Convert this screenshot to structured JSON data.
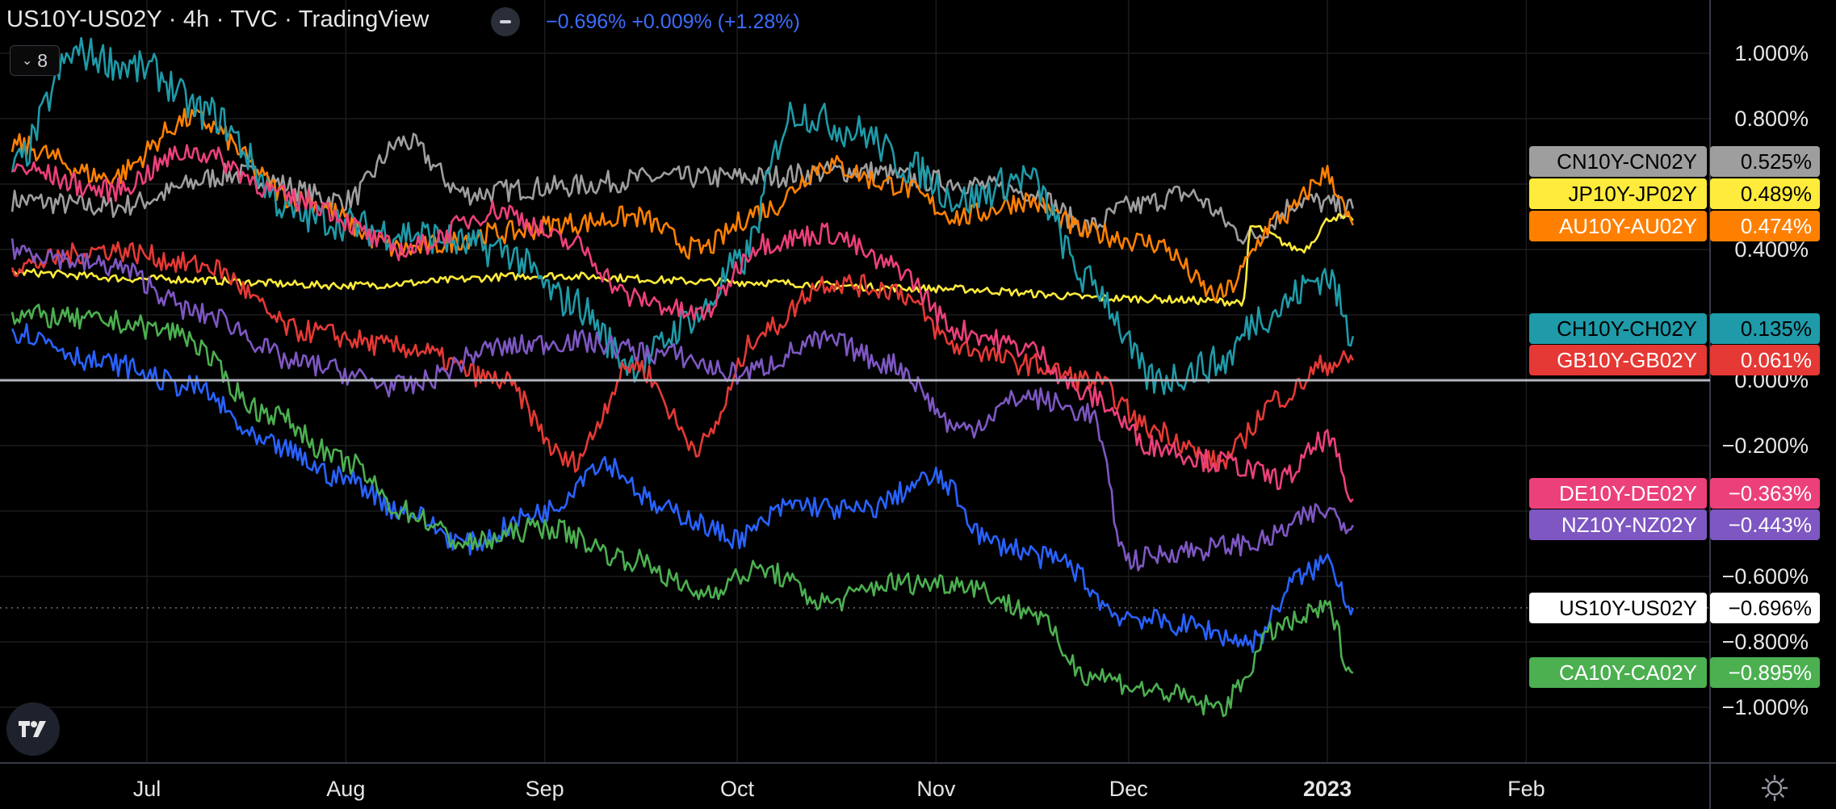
{
  "header": {
    "title": "US10Y-US02Y · 4h · TVC · TradingView",
    "values": "−0.696% +0.009% (+1.28%)",
    "indicator_count": "8"
  },
  "colors": {
    "background": "#000000",
    "grid": "#1c1c1c",
    "axis_text": "#e6e6e6",
    "zero_line": "#b2b5be"
  },
  "chart_data": {
    "type": "line",
    "interval": "4h",
    "x_start": "2022-06-10",
    "x_end": "2023-01-05",
    "x_axis_labels": [
      "Jul",
      "Aug",
      "Sep",
      "Oct",
      "Nov",
      "Dec",
      "2023",
      "Feb"
    ],
    "x_axis_dates": [
      "2022-07-01",
      "2022-08-01",
      "2022-09-01",
      "2022-10-01",
      "2022-11-01",
      "2022-12-01",
      "2023-01-01",
      "2023-02-01"
    ],
    "y_axis_labels": [
      "1.000%",
      "0.800%",
      "0.400%",
      "0.000%",
      "−0.200%",
      "−0.600%",
      "−0.800%",
      "−1.000%"
    ],
    "y_axis_values": [
      1.0,
      0.8,
      0.4,
      0.0,
      -0.2,
      -0.6,
      -0.8,
      -1.0
    ],
    "ylim": [
      -1.1,
      1.1
    ],
    "grid": true,
    "series": [
      {
        "name": "CN10Y-CN02Y",
        "color": "#9e9e9e",
        "last_label": "0.525%",
        "last": 0.525,
        "label_text_color": "#000000",
        "knots": [
          [
            "2022-06-10",
            0.55
          ],
          [
            "2022-06-25",
            0.53
          ],
          [
            "2022-07-15",
            0.63
          ],
          [
            "2022-08-01",
            0.55
          ],
          [
            "2022-08-10",
            0.73
          ],
          [
            "2022-08-20",
            0.57
          ],
          [
            "2022-09-01",
            0.59
          ],
          [
            "2022-09-20",
            0.62
          ],
          [
            "2022-10-01",
            0.62
          ],
          [
            "2022-10-20",
            0.64
          ],
          [
            "2022-11-01",
            0.61
          ],
          [
            "2022-11-15",
            0.58
          ],
          [
            "2022-11-25",
            0.47
          ],
          [
            "2022-12-01",
            0.53
          ],
          [
            "2022-12-10",
            0.57
          ],
          [
            "2022-12-20",
            0.44
          ],
          [
            "2022-12-28",
            0.55
          ],
          [
            "2023-01-05",
            0.525
          ]
        ]
      },
      {
        "name": "JP10Y-JP02Y",
        "color": "#ffeb3b",
        "last_label": "0.489%",
        "last": 0.489,
        "label_text_color": "#000000",
        "knots": [
          [
            "2022-06-10",
            0.33
          ],
          [
            "2022-07-01",
            0.31
          ],
          [
            "2022-08-01",
            0.29
          ],
          [
            "2022-09-01",
            0.32
          ],
          [
            "2022-10-01",
            0.3
          ],
          [
            "2022-11-01",
            0.28
          ],
          [
            "2022-12-01",
            0.25
          ],
          [
            "2022-12-19",
            0.24
          ],
          [
            "2022-12-20",
            0.47
          ],
          [
            "2022-12-28",
            0.4
          ],
          [
            "2023-01-02",
            0.5
          ],
          [
            "2023-01-05",
            0.489
          ]
        ]
      },
      {
        "name": "AU10Y-AU02Y",
        "color": "#ff8000",
        "last_label": "0.474%",
        "last": 0.474,
        "label_text_color": "#ffffff",
        "knots": [
          [
            "2022-06-10",
            0.72
          ],
          [
            "2022-06-25",
            0.62
          ],
          [
            "2022-07-08",
            0.8
          ],
          [
            "2022-07-25",
            0.55
          ],
          [
            "2022-08-10",
            0.4
          ],
          [
            "2022-08-25",
            0.45
          ],
          [
            "2022-09-05",
            0.48
          ],
          [
            "2022-09-15",
            0.5
          ],
          [
            "2022-09-25",
            0.4
          ],
          [
            "2022-10-05",
            0.52
          ],
          [
            "2022-10-15",
            0.66
          ],
          [
            "2022-10-25",
            0.6
          ],
          [
            "2022-11-05",
            0.5
          ],
          [
            "2022-11-15",
            0.55
          ],
          [
            "2022-11-25",
            0.45
          ],
          [
            "2022-12-05",
            0.42
          ],
          [
            "2022-12-15",
            0.26
          ],
          [
            "2022-12-25",
            0.5
          ],
          [
            "2023-01-01",
            0.63
          ],
          [
            "2023-01-05",
            0.474
          ]
        ]
      },
      {
        "name": "CH10Y-CH02Y",
        "color": "#1f9aa8",
        "last_label": "0.135%",
        "last": 0.135,
        "label_text_color": "#000000",
        "knots": [
          [
            "2022-06-10",
            0.65
          ],
          [
            "2022-06-20",
            1.0
          ],
          [
            "2022-07-01",
            0.95
          ],
          [
            "2022-07-10",
            0.82
          ],
          [
            "2022-07-25",
            0.5
          ],
          [
            "2022-08-10",
            0.45
          ],
          [
            "2022-08-25",
            0.4
          ],
          [
            "2022-09-05",
            0.24
          ],
          [
            "2022-09-15",
            0.05
          ],
          [
            "2022-09-25",
            0.2
          ],
          [
            "2022-10-01",
            0.35
          ],
          [
            "2022-10-10",
            0.82
          ],
          [
            "2022-10-20",
            0.76
          ],
          [
            "2022-10-28",
            0.65
          ],
          [
            "2022-11-05",
            0.55
          ],
          [
            "2022-11-15",
            0.62
          ],
          [
            "2022-11-25",
            0.3
          ],
          [
            "2022-12-05",
            0.0
          ],
          [
            "2022-12-15",
            0.05
          ],
          [
            "2022-12-22",
            0.2
          ],
          [
            "2023-01-01",
            0.32
          ],
          [
            "2023-01-05",
            0.135
          ]
        ]
      },
      {
        "name": "GB10Y-GB02Y",
        "color": "#e53935",
        "last_label": "0.061%",
        "last": 0.061,
        "label_text_color": "#ffffff",
        "knots": [
          [
            "2022-06-10",
            0.35
          ],
          [
            "2022-06-25",
            0.4
          ],
          [
            "2022-07-10",
            0.35
          ],
          [
            "2022-07-25",
            0.15
          ],
          [
            "2022-08-10",
            0.1
          ],
          [
            "2022-08-25",
            0.0
          ],
          [
            "2022-09-05",
            -0.25
          ],
          [
            "2022-09-15",
            0.05
          ],
          [
            "2022-09-25",
            -0.2
          ],
          [
            "2022-10-05",
            0.15
          ],
          [
            "2022-10-15",
            0.3
          ],
          [
            "2022-10-25",
            0.28
          ],
          [
            "2022-11-05",
            0.1
          ],
          [
            "2022-11-15",
            0.05
          ],
          [
            "2022-11-25",
            0.0
          ],
          [
            "2022-12-05",
            -0.15
          ],
          [
            "2022-12-15",
            -0.25
          ],
          [
            "2022-12-25",
            -0.05
          ],
          [
            "2023-01-01",
            0.05
          ],
          [
            "2023-01-05",
            0.061
          ]
        ]
      },
      {
        "name": "DE10Y-DE02Y",
        "color": "#ec407a",
        "last_label": "−0.363%",
        "last": -0.363,
        "label_text_color": "#ffffff",
        "knots": [
          [
            "2022-06-10",
            0.65
          ],
          [
            "2022-06-25",
            0.58
          ],
          [
            "2022-07-08",
            0.7
          ],
          [
            "2022-07-25",
            0.55
          ],
          [
            "2022-08-10",
            0.4
          ],
          [
            "2022-08-25",
            0.52
          ],
          [
            "2022-09-05",
            0.42
          ],
          [
            "2022-09-15",
            0.25
          ],
          [
            "2022-09-25",
            0.2
          ],
          [
            "2022-10-05",
            0.42
          ],
          [
            "2022-10-15",
            0.45
          ],
          [
            "2022-10-25",
            0.35
          ],
          [
            "2022-11-05",
            0.15
          ],
          [
            "2022-11-15",
            0.1
          ],
          [
            "2022-11-25",
            -0.05
          ],
          [
            "2022-12-05",
            -0.2
          ],
          [
            "2022-12-15",
            -0.25
          ],
          [
            "2022-12-25",
            -0.3
          ],
          [
            "2023-01-01",
            -0.18
          ],
          [
            "2023-01-05",
            -0.363
          ]
        ]
      },
      {
        "name": "NZ10Y-NZ02Y",
        "color": "#7e57c2",
        "last_label": "−0.443%",
        "last": -0.443,
        "label_text_color": "#ffffff",
        "knots": [
          [
            "2022-06-10",
            0.4
          ],
          [
            "2022-06-25",
            0.35
          ],
          [
            "2022-07-10",
            0.2
          ],
          [
            "2022-07-25",
            0.05
          ],
          [
            "2022-08-10",
            -0.02
          ],
          [
            "2022-08-25",
            0.1
          ],
          [
            "2022-09-05",
            0.12
          ],
          [
            "2022-09-20",
            0.08
          ],
          [
            "2022-10-01",
            0.02
          ],
          [
            "2022-10-15",
            0.12
          ],
          [
            "2022-10-25",
            0.05
          ],
          [
            "2022-11-05",
            -0.15
          ],
          [
            "2022-11-15",
            -0.05
          ],
          [
            "2022-11-25",
            -0.1
          ],
          [
            "2022-12-01",
            -0.55
          ],
          [
            "2022-12-10",
            -0.52
          ],
          [
            "2022-12-20",
            -0.5
          ],
          [
            "2023-01-01",
            -0.4
          ],
          [
            "2023-01-05",
            -0.443
          ]
        ]
      },
      {
        "name": "US10Y-US02Y",
        "color": "#2962ff",
        "last_label": "−0.696%",
        "last": -0.696,
        "label_text_color": "#000000",
        "knots": [
          [
            "2022-06-10",
            0.15
          ],
          [
            "2022-06-25",
            0.05
          ],
          [
            "2022-07-08",
            -0.02
          ],
          [
            "2022-07-20",
            -0.2
          ],
          [
            "2022-08-01",
            -0.3
          ],
          [
            "2022-08-10",
            -0.4
          ],
          [
            "2022-08-20",
            -0.5
          ],
          [
            "2022-09-01",
            -0.4
          ],
          [
            "2022-09-10",
            -0.25
          ],
          [
            "2022-09-20",
            -0.4
          ],
          [
            "2022-10-01",
            -0.48
          ],
          [
            "2022-10-10",
            -0.38
          ],
          [
            "2022-10-20",
            -0.4
          ],
          [
            "2022-11-01",
            -0.3
          ],
          [
            "2022-11-10",
            -0.5
          ],
          [
            "2022-11-20",
            -0.55
          ],
          [
            "2022-11-30",
            -0.72
          ],
          [
            "2022-12-10",
            -0.75
          ],
          [
            "2022-12-20",
            -0.8
          ],
          [
            "2022-12-28",
            -0.6
          ],
          [
            "2023-01-01",
            -0.55
          ],
          [
            "2023-01-05",
            -0.696
          ]
        ]
      },
      {
        "name": "CA10Y-CA02Y",
        "color": "#4caf50",
        "last_label": "−0.895%",
        "last": -0.895,
        "label_text_color": "#ffffff",
        "knots": [
          [
            "2022-06-10",
            0.2
          ],
          [
            "2022-06-25",
            0.18
          ],
          [
            "2022-07-05",
            0.15
          ],
          [
            "2022-07-20",
            -0.1
          ],
          [
            "2022-08-01",
            -0.25
          ],
          [
            "2022-08-10",
            -0.4
          ],
          [
            "2022-08-20",
            -0.5
          ],
          [
            "2022-09-01",
            -0.45
          ],
          [
            "2022-09-15",
            -0.55
          ],
          [
            "2022-09-25",
            -0.65
          ],
          [
            "2022-10-05",
            -0.58
          ],
          [
            "2022-10-15",
            -0.68
          ],
          [
            "2022-10-25",
            -0.62
          ],
          [
            "2022-11-05",
            -0.62
          ],
          [
            "2022-11-15",
            -0.7
          ],
          [
            "2022-11-25",
            -0.9
          ],
          [
            "2022-12-05",
            -0.95
          ],
          [
            "2022-12-15",
            -1.0
          ],
          [
            "2022-12-25",
            -0.75
          ],
          [
            "2023-01-01",
            -0.7
          ],
          [
            "2023-01-05",
            -0.895
          ]
        ]
      }
    ]
  }
}
